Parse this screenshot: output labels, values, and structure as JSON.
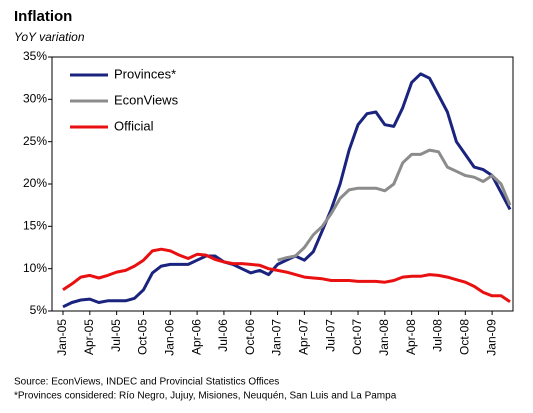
{
  "chart_data": {
    "type": "line",
    "title": "Inflation",
    "subtitle": "YoY variation",
    "categories": [
      "Jan-05",
      null,
      null,
      "Apr-05",
      null,
      null,
      "Jul-05",
      null,
      null,
      "Oct-05",
      null,
      null,
      "Jan-06",
      null,
      null,
      "Apr-06",
      null,
      null,
      "Jul-06",
      null,
      null,
      "Oct-06",
      null,
      null,
      "Jan-07",
      null,
      null,
      "Apr-07",
      null,
      null,
      "Jul-07",
      null,
      null,
      "Oct-07",
      null,
      null,
      "Jan-08",
      null,
      null,
      "Apr-08",
      null,
      null,
      "Jul-08",
      null,
      null,
      "Oct-08",
      null,
      null,
      "Jan-09",
      null,
      null
    ],
    "series": [
      {
        "name": "Provinces*",
        "color": "#1a237e",
        "values": [
          5.5,
          6,
          6.3,
          6.4,
          6.0,
          6.2,
          6.2,
          6.2,
          6.5,
          7.5,
          9.5,
          10.3,
          10.5,
          10.5,
          10.5,
          11,
          11.5,
          11.5,
          10.8,
          10.5,
          10,
          9.5,
          9.8,
          9.3,
          10.5,
          11,
          11.5,
          11,
          12,
          14.5,
          17,
          20,
          24,
          27,
          28.3,
          28.5,
          27,
          26.8,
          29,
          32,
          33,
          32.5,
          30.5,
          28.5,
          25,
          23.5,
          22,
          21.7,
          21,
          19,
          17
        ]
      },
      {
        "name": "EconViews",
        "color": "#8c8c8c",
        "values": [
          null,
          null,
          null,
          null,
          null,
          null,
          null,
          null,
          null,
          null,
          null,
          null,
          null,
          null,
          null,
          null,
          null,
          null,
          null,
          null,
          null,
          null,
          null,
          null,
          11,
          11.3,
          11.5,
          12.5,
          14,
          15,
          16.5,
          18.3,
          19.3,
          19.5,
          19.5,
          19.5,
          19.2,
          20,
          22.5,
          23.5,
          23.5,
          24,
          23.8,
          22,
          21.5,
          21,
          20.8,
          20.3,
          21,
          20,
          17.5
        ]
      },
      {
        "name": "Official",
        "color": "#e81010",
        "values": [
          7.5,
          8.2,
          9.0,
          9.2,
          8.9,
          9.2,
          9.6,
          9.8,
          10.3,
          11.0,
          12.1,
          12.3,
          12.1,
          11.6,
          11.2,
          11.7,
          11.6,
          11.1,
          10.8,
          10.6,
          10.6,
          10.5,
          10.4,
          10.0,
          9.8,
          9.6,
          9.3,
          9.0,
          8.9,
          8.8,
          8.6,
          8.6,
          8.6,
          8.5,
          8.5,
          8.5,
          8.4,
          8.6,
          9.0,
          9.1,
          9.1,
          9.3,
          9.2,
          9.0,
          8.7,
          8.4,
          7.9,
          7.2,
          6.8,
          6.8,
          6.1
        ]
      }
    ],
    "ylim": [
      5,
      35
    ],
    "yticks": [
      {
        "value": 5,
        "label": "5%"
      },
      {
        "value": 10,
        "label": "10%"
      },
      {
        "value": 15,
        "label": "15%"
      },
      {
        "value": 20,
        "label": "20%"
      },
      {
        "value": 25,
        "label": "25%"
      },
      {
        "value": 30,
        "label": "30%"
      },
      {
        "value": 35,
        "label": "35%"
      }
    ],
    "grid": false,
    "legend": "top-left",
    "notes": [
      "Source: EconViews, INDEC and Provincial Statistics Offices",
      "*Provinces considered: Río Negro, Jujuy, Misiones, Neuquén, San Luis and La Pampa"
    ]
  }
}
